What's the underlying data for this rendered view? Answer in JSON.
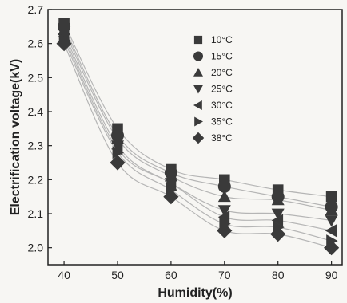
{
  "chart_data": {
    "type": "scatter",
    "title": "",
    "xlabel": "Humidity(%)",
    "ylabel": "Electrification voltage(kV)",
    "xlim": [
      37,
      92
    ],
    "ylim": [
      1.95,
      2.7
    ],
    "xticks": [
      "40",
      "50",
      "60",
      "70",
      "80",
      "90"
    ],
    "yticks": [
      "2.0",
      "2.1",
      "2.2",
      "2.3",
      "2.4",
      "2.5",
      "2.6",
      "2.7"
    ],
    "fit_curves": true,
    "legend_position": "top-right",
    "marker_color": "#3a3a3a",
    "curve_color": "#b5b5b5",
    "x": [
      40,
      50,
      60,
      70,
      80,
      90
    ],
    "series": [
      {
        "name": "10°C",
        "marker": "square",
        "values": [
          2.66,
          2.35,
          2.23,
          2.2,
          2.17,
          2.15
        ]
      },
      {
        "name": "15°C",
        "marker": "circle",
        "values": [
          2.65,
          2.33,
          2.22,
          2.18,
          2.15,
          2.12
        ]
      },
      {
        "name": "20°C",
        "marker": "triangle-up",
        "values": [
          2.64,
          2.32,
          2.21,
          2.15,
          2.14,
          2.11
        ]
      },
      {
        "name": "25°C",
        "marker": "triangle-down",
        "values": [
          2.63,
          2.3,
          2.19,
          2.11,
          2.1,
          2.08
        ]
      },
      {
        "name": "30°C",
        "marker": "triangle-left",
        "values": [
          2.62,
          2.29,
          2.19,
          2.09,
          2.08,
          2.05
        ]
      },
      {
        "name": "35°C",
        "marker": "triangle-right",
        "values": [
          2.61,
          2.28,
          2.17,
          2.07,
          2.06,
          2.02
        ]
      },
      {
        "name": "38°C",
        "marker": "diamond",
        "values": [
          2.6,
          2.25,
          2.15,
          2.05,
          2.04,
          2.0
        ]
      }
    ]
  }
}
